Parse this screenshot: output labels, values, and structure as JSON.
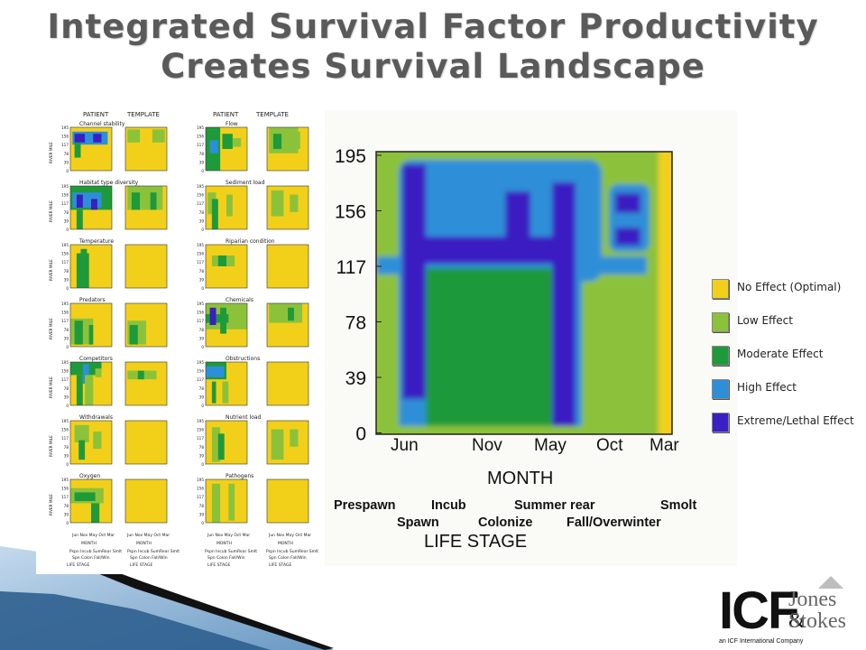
{
  "slide": {
    "title_line1": "Integrated Survival Factor Productivity",
    "title_line2": "Creates Survival Landscape"
  },
  "colors": {
    "no_effect": "#f2d01a",
    "low_effect": "#8cc23a",
    "moderate_effect": "#1f9a3a",
    "high_effect": "#2d8fd8",
    "extreme_effect": "#3a1fc2",
    "title": "#5a5a5a"
  },
  "panels": {
    "col_headers": [
      "PATIENT",
      "TEMPLATE",
      "PATIENT",
      "TEMPLATE"
    ],
    "left_titles": [
      "Channel stability",
      "Habitat type diversity",
      "Temperature",
      "Predators",
      "Competitors",
      "Withdrawals",
      "Oxygen"
    ],
    "right_titles": [
      "Flow",
      "Sediment load",
      "Riparian condition",
      "Chemicals",
      "Obstructions",
      "Nutrient load",
      "Pathogens"
    ],
    "y_ticks": [
      "195",
      "156",
      "117",
      "78",
      "39",
      "0"
    ],
    "y_label": "RIVER MILE",
    "month_ticks": "Jun Nov May Oct Mar",
    "month_label": "MONTH",
    "stage_row1": "Pspn Incub SumRear Smlt",
    "stage_row2": "Spn Colon Fall/Win",
    "stage_label": "LIFE STAGE"
  },
  "main_chart": {
    "y_ticks": [
      "195",
      "156",
      "117",
      "78",
      "39",
      "0"
    ],
    "x_ticks": [
      "Jun",
      "Nov",
      "May",
      "Oct",
      "Mar"
    ],
    "x_label": "MONTH",
    "stages_top": [
      "Prespawn",
      "Incub",
      "Summer rear",
      "Smolt"
    ],
    "stages_bottom": [
      "Spawn",
      "Colonize",
      "Fall/Overwinter"
    ],
    "stage_label": "LIFE STAGE"
  },
  "legend": [
    {
      "label": "No Effect (Optimal)",
      "color": "#f2d01a"
    },
    {
      "label": "Low Effect",
      "color": "#8cc23a"
    },
    {
      "label": "Moderate Effect",
      "color": "#1f9a3a"
    },
    {
      "label": "High Effect",
      "color": "#2d8fd8"
    },
    {
      "label": "Extreme/Lethal Effect",
      "color": "#3a1fc2"
    }
  ],
  "logo": {
    "icf": "ICF",
    "jones": "Jones",
    "amp": "&",
    "stokes": "Stokes",
    "tagline": "an ICF International Company"
  }
}
